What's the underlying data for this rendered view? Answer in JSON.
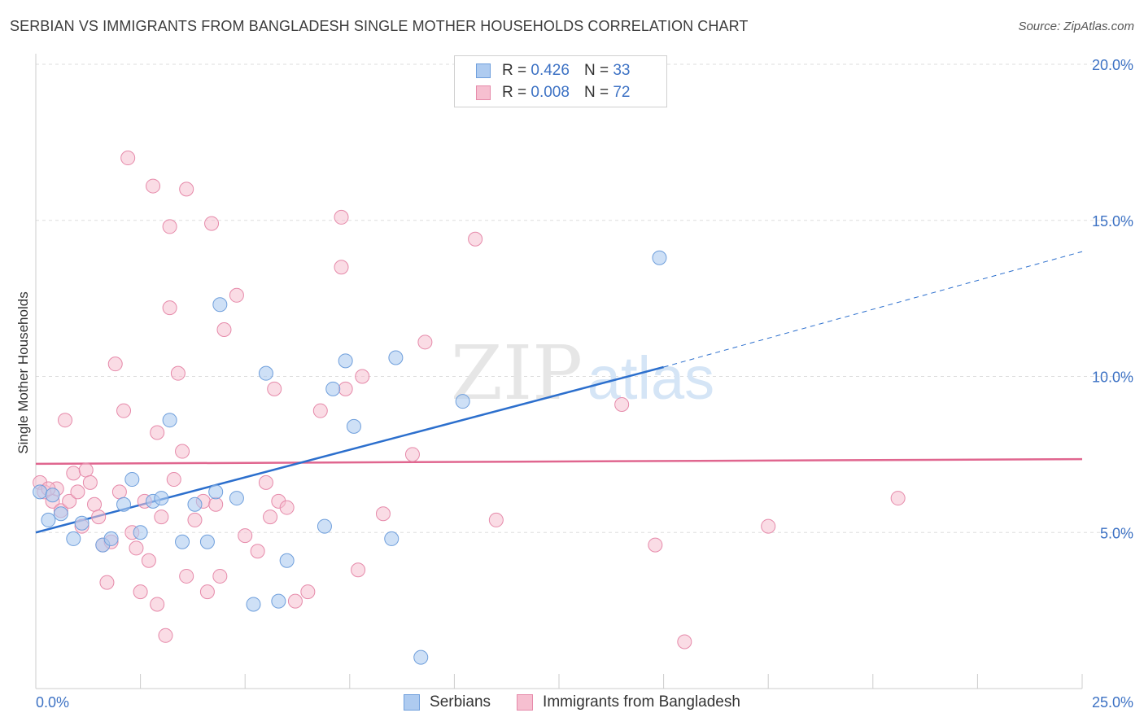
{
  "title": "SERBIAN VS IMMIGRANTS FROM BANGLADESH SINGLE MOTHER HOUSEHOLDS CORRELATION CHART",
  "source": "Source: ZipAtlas.com",
  "watermark": {
    "zip": "ZIP",
    "atlas": "atlas"
  },
  "legend": {
    "rows": [
      {
        "r_label": "R =",
        "r_value": "0.426",
        "n_label": "N =",
        "n_value": "33"
      },
      {
        "r_label": "R =",
        "r_value": "0.008",
        "n_label": "N =",
        "n_value": "72"
      }
    ]
  },
  "bottom_legend": {
    "series1": "Serbians",
    "series2": "Immigrants from Bangladesh"
  },
  "colors": {
    "blue_fill": "#aecbf0",
    "blue_stroke": "#6f9fdc",
    "blue_line": "#2c6fcd",
    "pink_fill": "#f6bfd0",
    "pink_stroke": "#e68aaa",
    "pink_line": "#e0668f",
    "axis_text": "#3d72c4",
    "grid": "#dddddd"
  },
  "chart_data": {
    "type": "scatter",
    "title": "SERBIAN VS IMMIGRANTS FROM BANGLADESH SINGLE MOTHER HOUSEHOLDS CORRELATION CHART",
    "xlabel": "",
    "ylabel": "Single Mother Households",
    "xlim": [
      0,
      25
    ],
    "ylim": [
      0,
      20
    ],
    "x_tick_labels": [
      "0.0%",
      "25.0%"
    ],
    "y_ticks": [
      5,
      10,
      15,
      20
    ],
    "y_tick_labels": [
      "5.0%",
      "10.0%",
      "15.0%",
      "20.0%"
    ],
    "grid": true,
    "legend_position": "top-center",
    "series": [
      {
        "name": "Serbians",
        "r": 0.426,
        "n": 33,
        "trend": {
          "x0": 0,
          "y0": 5.0,
          "x1": 15,
          "y1": 10.3,
          "dashed_to_x": 25,
          "dashed_to_y": 14.0
        },
        "points": [
          [
            0.1,
            6.3
          ],
          [
            0.3,
            5.4
          ],
          [
            0.6,
            5.6
          ],
          [
            0.9,
            4.8
          ],
          [
            1.1,
            5.3
          ],
          [
            1.6,
            4.6
          ],
          [
            1.8,
            4.8
          ],
          [
            2.1,
            5.9
          ],
          [
            2.3,
            6.7
          ],
          [
            2.5,
            5.0
          ],
          [
            2.8,
            6.0
          ],
          [
            3.0,
            6.1
          ],
          [
            3.2,
            8.6
          ],
          [
            3.5,
            4.7
          ],
          [
            3.8,
            5.9
          ],
          [
            4.1,
            4.7
          ],
          [
            4.3,
            6.3
          ],
          [
            4.4,
            12.3
          ],
          [
            4.8,
            6.1
          ],
          [
            5.2,
            2.7
          ],
          [
            5.5,
            10.1
          ],
          [
            5.8,
            2.8
          ],
          [
            6.0,
            4.1
          ],
          [
            6.9,
            5.2
          ],
          [
            7.1,
            9.6
          ],
          [
            7.4,
            10.5
          ],
          [
            7.6,
            8.4
          ],
          [
            8.5,
            4.8
          ],
          [
            8.6,
            10.6
          ],
          [
            9.2,
            1.0
          ],
          [
            10.2,
            9.2
          ],
          [
            14.9,
            13.8
          ],
          [
            0.4,
            6.2
          ]
        ]
      },
      {
        "name": "Immigrants from Bangladesh",
        "r": 0.008,
        "n": 72,
        "trend": {
          "x0": 0,
          "y0": 7.2,
          "x1": 25,
          "y1": 7.35
        },
        "points": [
          [
            0.1,
            6.6
          ],
          [
            0.2,
            6.3
          ],
          [
            0.4,
            6.0
          ],
          [
            0.5,
            6.4
          ],
          [
            0.6,
            5.7
          ],
          [
            0.7,
            8.6
          ],
          [
            0.8,
            6.0
          ],
          [
            0.9,
            6.9
          ],
          [
            1.0,
            6.3
          ],
          [
            1.1,
            5.2
          ],
          [
            1.2,
            7.0
          ],
          [
            1.3,
            6.6
          ],
          [
            1.4,
            5.9
          ],
          [
            1.5,
            5.5
          ],
          [
            1.6,
            4.6
          ],
          [
            1.7,
            3.4
          ],
          [
            1.8,
            4.7
          ],
          [
            1.9,
            10.4
          ],
          [
            2.0,
            6.3
          ],
          [
            2.1,
            8.9
          ],
          [
            2.2,
            17.0
          ],
          [
            2.3,
            5.0
          ],
          [
            2.4,
            4.5
          ],
          [
            2.5,
            3.1
          ],
          [
            2.6,
            6.0
          ],
          [
            2.7,
            4.1
          ],
          [
            2.8,
            16.1
          ],
          [
            2.9,
            8.2
          ],
          [
            2.9,
            2.7
          ],
          [
            3.0,
            5.5
          ],
          [
            3.1,
            1.7
          ],
          [
            3.2,
            14.8
          ],
          [
            3.2,
            12.2
          ],
          [
            3.3,
            6.7
          ],
          [
            3.4,
            10.1
          ],
          [
            3.5,
            7.6
          ],
          [
            3.6,
            3.6
          ],
          [
            3.6,
            16.0
          ],
          [
            3.8,
            5.4
          ],
          [
            4.0,
            6.0
          ],
          [
            4.1,
            3.1
          ],
          [
            4.2,
            14.9
          ],
          [
            4.3,
            5.9
          ],
          [
            4.4,
            3.6
          ],
          [
            4.5,
            11.5
          ],
          [
            4.8,
            12.6
          ],
          [
            5.0,
            4.9
          ],
          [
            5.3,
            4.4
          ],
          [
            5.5,
            6.6
          ],
          [
            5.6,
            5.5
          ],
          [
            5.7,
            9.6
          ],
          [
            5.8,
            6.0
          ],
          [
            6.0,
            5.8
          ],
          [
            6.2,
            2.8
          ],
          [
            6.5,
            3.1
          ],
          [
            6.8,
            8.9
          ],
          [
            7.3,
            15.1
          ],
          [
            7.3,
            13.5
          ],
          [
            7.4,
            9.6
          ],
          [
            7.7,
            3.8
          ],
          [
            7.8,
            10.0
          ],
          [
            8.3,
            5.6
          ],
          [
            9.0,
            7.5
          ],
          [
            9.3,
            11.1
          ],
          [
            10.5,
            14.4
          ],
          [
            11.0,
            5.4
          ],
          [
            14.0,
            9.1
          ],
          [
            14.8,
            4.6
          ],
          [
            15.5,
            1.5
          ],
          [
            17.5,
            5.2
          ],
          [
            20.6,
            6.1
          ],
          [
            0.3,
            6.4
          ]
        ]
      }
    ]
  }
}
